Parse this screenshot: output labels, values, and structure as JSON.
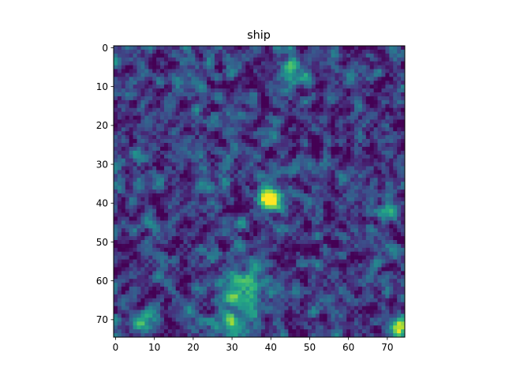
{
  "chart_data": {
    "type": "heatmap",
    "title": "ship",
    "xlabel": "",
    "ylabel": "",
    "image_size": [
      75,
      75
    ],
    "colormap": "viridis",
    "xlim": [
      -0.5,
      74.5
    ],
    "ylim": [
      74.5,
      -0.5
    ],
    "x_ticks": [
      0,
      10,
      20,
      30,
      40,
      50,
      60,
      70
    ],
    "y_ticks": [
      0,
      10,
      20,
      30,
      40,
      50,
      60,
      70
    ],
    "grid": false,
    "legend": "none",
    "hotspots": [
      {
        "x": 40,
        "y": 39,
        "intensity": 1.0,
        "spread": 2.0
      },
      {
        "x": 73,
        "y": 72,
        "intensity": 0.85,
        "spread": 1.8
      },
      {
        "x": 33,
        "y": 62,
        "intensity": 0.45,
        "spread": 5.0
      },
      {
        "x": 46,
        "y": 7,
        "intensity": 0.35,
        "spread": 3.5
      },
      {
        "x": 8,
        "y": 71,
        "intensity": 0.4,
        "spread": 2.5
      },
      {
        "x": 30,
        "y": 72,
        "intensity": 0.4,
        "spread": 3.0
      },
      {
        "x": 71,
        "y": 40,
        "intensity": 0.3,
        "spread": 2.5
      }
    ],
    "colors": {
      "viridis_low": "#440154",
      "viridis_mid": "#21918c",
      "viridis_high": "#fde725"
    }
  }
}
